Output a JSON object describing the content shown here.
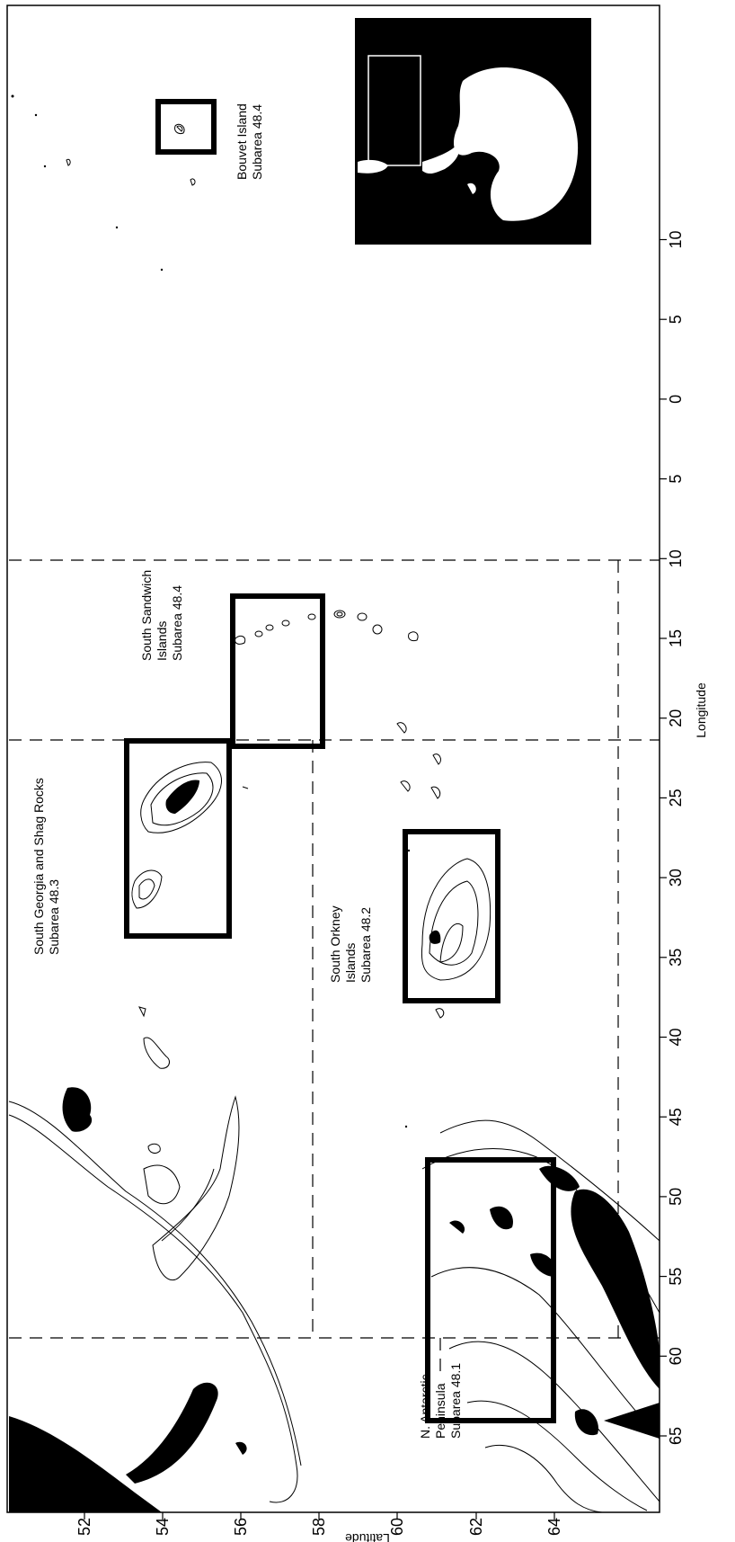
{
  "map": {
    "x_axis_title": "Longitude",
    "y_axis_title": "Latitude",
    "longitude_ticks": [
      "65",
      "60",
      "55",
      "50",
      "45",
      "40",
      "35",
      "30",
      "25",
      "20",
      "15",
      "10",
      "5",
      "0",
      "5",
      "10"
    ],
    "latitude_ticks": [
      "52",
      "54",
      "56",
      "58",
      "60",
      "62",
      "64"
    ],
    "regions": [
      {
        "line1": "N. Antarctic",
        "line2": "Peninsula",
        "line3": "Subarea 48.1"
      },
      {
        "line1": "South Orkney",
        "line2": "Islands",
        "line3": "Subarea 48.2"
      },
      {
        "line1": "South Georgia and Shag Rocks",
        "line2": "Subarea 48.3"
      },
      {
        "line1": "South Sandwich",
        "line2": "Islands",
        "line3": "Subarea 48.4"
      },
      {
        "line1": "Bouvet Island",
        "line2": "Subarea 48.4"
      }
    ],
    "colors": {
      "land": "#000000",
      "contour": "#000000",
      "background": "#ffffff"
    }
  }
}
